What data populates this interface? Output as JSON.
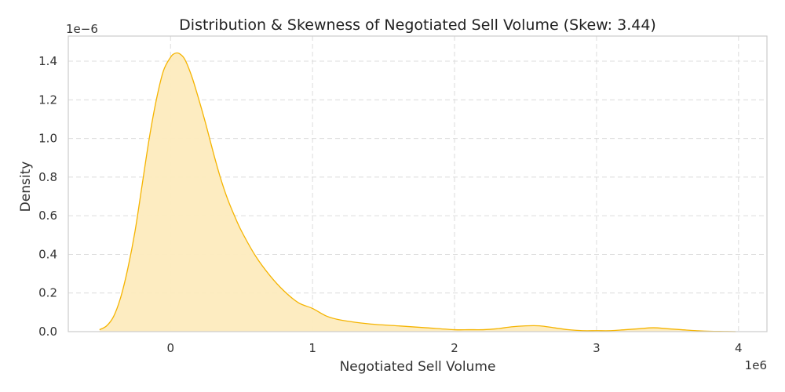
{
  "chart_data": {
    "type": "area",
    "title": "Distribution & Skewness of Negotiated Sell Volume (Skew: 3.44)",
    "xlabel": "Negotiated Sell Volume",
    "ylabel": "Density",
    "x_offset_label": "1e6",
    "y_offset_label": "1e−6",
    "xlim": [
      -0.72,
      4.2
    ],
    "ylim": [
      0,
      1.53
    ],
    "x_ticks": [
      0,
      1,
      2,
      3,
      4
    ],
    "x_tick_labels": [
      "0",
      "1",
      "2",
      "3",
      "4"
    ],
    "y_ticks": [
      0.0,
      0.2,
      0.4,
      0.6,
      0.8,
      1.0,
      1.2,
      1.4
    ],
    "y_tick_labels": [
      "0.0",
      "0.2",
      "0.4",
      "0.6",
      "0.8",
      "1.0",
      "1.2",
      "1.4"
    ],
    "grid": true,
    "colors": {
      "line": "#F5B400",
      "fill": "#FDEBBE",
      "grid": "#dcdcdc",
      "frame": "#cccccc"
    },
    "series": [
      {
        "x": [
          -0.5,
          -0.45,
          -0.4,
          -0.35,
          -0.3,
          -0.25,
          -0.2,
          -0.15,
          -0.1,
          -0.05,
          0.0,
          0.03,
          0.06,
          0.1,
          0.15,
          0.2,
          0.25,
          0.3,
          0.35,
          0.4,
          0.45,
          0.5,
          0.6,
          0.7,
          0.8,
          0.9,
          1.0,
          1.1,
          1.2,
          1.4,
          1.6,
          1.8,
          2.0,
          2.1,
          2.2,
          2.3,
          2.4,
          2.5,
          2.6,
          2.7,
          2.8,
          2.9,
          3.0,
          3.1,
          3.2,
          3.3,
          3.4,
          3.5,
          3.6,
          3.7,
          3.8,
          3.9,
          3.98
        ],
        "y": [
          0.01,
          0.03,
          0.08,
          0.18,
          0.33,
          0.52,
          0.76,
          1.0,
          1.2,
          1.35,
          1.42,
          1.44,
          1.44,
          1.41,
          1.32,
          1.2,
          1.07,
          0.93,
          0.8,
          0.69,
          0.6,
          0.52,
          0.39,
          0.29,
          0.21,
          0.15,
          0.12,
          0.08,
          0.06,
          0.04,
          0.03,
          0.02,
          0.01,
          0.01,
          0.01,
          0.015,
          0.025,
          0.03,
          0.03,
          0.02,
          0.01,
          0.005,
          0.005,
          0.005,
          0.01,
          0.015,
          0.02,
          0.015,
          0.01,
          0.005,
          0.002,
          0.001,
          0.0
        ]
      }
    ]
  }
}
